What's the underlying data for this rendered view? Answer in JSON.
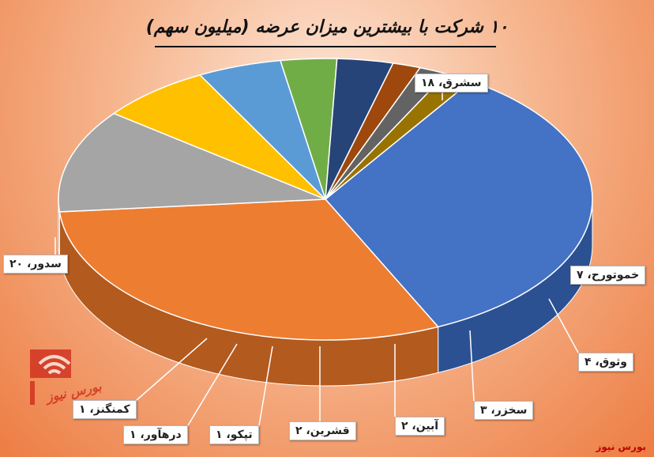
{
  "chart_data": {
    "type": "pie",
    "title": "۱۰ شرکت با بیشترین میزان عرضه (میلیون سهم)",
    "slices": [
      {
        "label": "سدور",
        "value": 20,
        "value_text": "۲۰",
        "color": "#4472c4",
        "side_color": "#2c5193"
      },
      {
        "label": "سشرق",
        "value": 18,
        "value_text": "۱۸",
        "color": "#ed7d31",
        "side_color": "#b35a1e"
      },
      {
        "label": "خموتورح",
        "value": 7,
        "value_text": "۷",
        "color": "#a5a5a5",
        "side_color": "#6e6e6e"
      },
      {
        "label": "وثوق",
        "value": 4,
        "value_text": "۴",
        "color": "#ffc000",
        "side_color": "#6b5200"
      },
      {
        "label": "سخزر",
        "value": 3,
        "value_text": "۳",
        "color": "#5b9bd5",
        "side_color": "#203e58"
      },
      {
        "label": "آبین",
        "value": 2,
        "value_text": "۲",
        "color": "#70ad47",
        "side_color": "#2f4c1f"
      },
      {
        "label": "قشرین",
        "value": 2,
        "value_text": "۲",
        "color": "#264478",
        "side_color": "#1a2f55"
      },
      {
        "label": "تپکو",
        "value": 1,
        "value_text": "۱",
        "color": "#9e480e",
        "side_color": "#6e3209"
      },
      {
        "label": "درهآور",
        "value": 1,
        "value_text": "۱",
        "color": "#636363",
        "side_color": "#444444"
      },
      {
        "label": "کمنگنز",
        "value": 1,
        "value_text": "۱",
        "color": "#997300",
        "side_color": "#6a5000"
      }
    ],
    "legend": "none",
    "data_labels": "outside with leader lines"
  },
  "brand": "بورس نیوز",
  "watermark": "بورس نیوز"
}
